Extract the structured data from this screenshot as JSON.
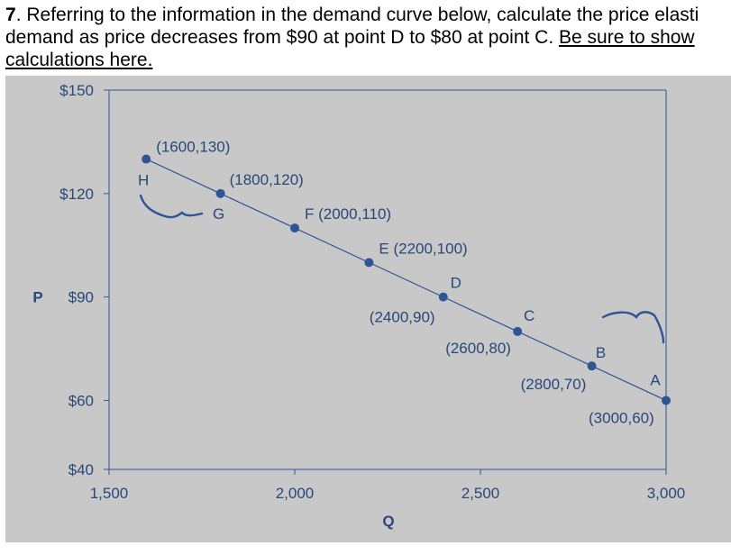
{
  "question": {
    "number": "7",
    "line1_rest": ". Referring to the information in the demand curve below, calculate the price elasti",
    "line2_plain": "demand as price decreases from $90 at point D to $80 at point C. ",
    "line2_underlined": "Be sure to show",
    "line3_underlined": "calculations here."
  },
  "chart_data": {
    "type": "line",
    "xlabel": "Q",
    "ylabel": "P",
    "xlim": [
      1500,
      3000
    ],
    "ylim": [
      40,
      150
    ],
    "x_ticks": [
      {
        "value": 1500,
        "label": "1,500"
      },
      {
        "value": 2000,
        "label": "2,000"
      },
      {
        "value": 2500,
        "label": "2,500"
      },
      {
        "value": 3000,
        "label": "3,000"
      }
    ],
    "y_ticks": [
      {
        "value": 40,
        "label": "$40"
      },
      {
        "value": 60,
        "label": "$60"
      },
      {
        "value": 90,
        "label": "$90"
      },
      {
        "value": 120,
        "label": "$120"
      },
      {
        "value": 150,
        "label": "$150"
      }
    ],
    "points": [
      {
        "letter": "H",
        "x": 1600,
        "y": 130,
        "label": "(1600,130)"
      },
      {
        "letter": "G",
        "x": 1800,
        "y": 120,
        "label": "(1800,120)"
      },
      {
        "letter": "F",
        "x": 2000,
        "y": 110,
        "label": "F (2000,110)"
      },
      {
        "letter": "E",
        "x": 2200,
        "y": 100,
        "label": "E (2200,100)"
      },
      {
        "letter": "D",
        "x": 2400,
        "y": 90,
        "label": "(2400,90)"
      },
      {
        "letter": "C",
        "x": 2600,
        "y": 80,
        "label": "(2600,80)"
      },
      {
        "letter": "B",
        "x": 2800,
        "y": 70,
        "label": "(2800,70)"
      },
      {
        "letter": "A",
        "x": 3000,
        "y": 60,
        "label": "(3000,60)"
      }
    ],
    "grid": false,
    "line_color": "#2f5597",
    "text_color": "#28477a",
    "background_color": "#c8c8c8"
  }
}
